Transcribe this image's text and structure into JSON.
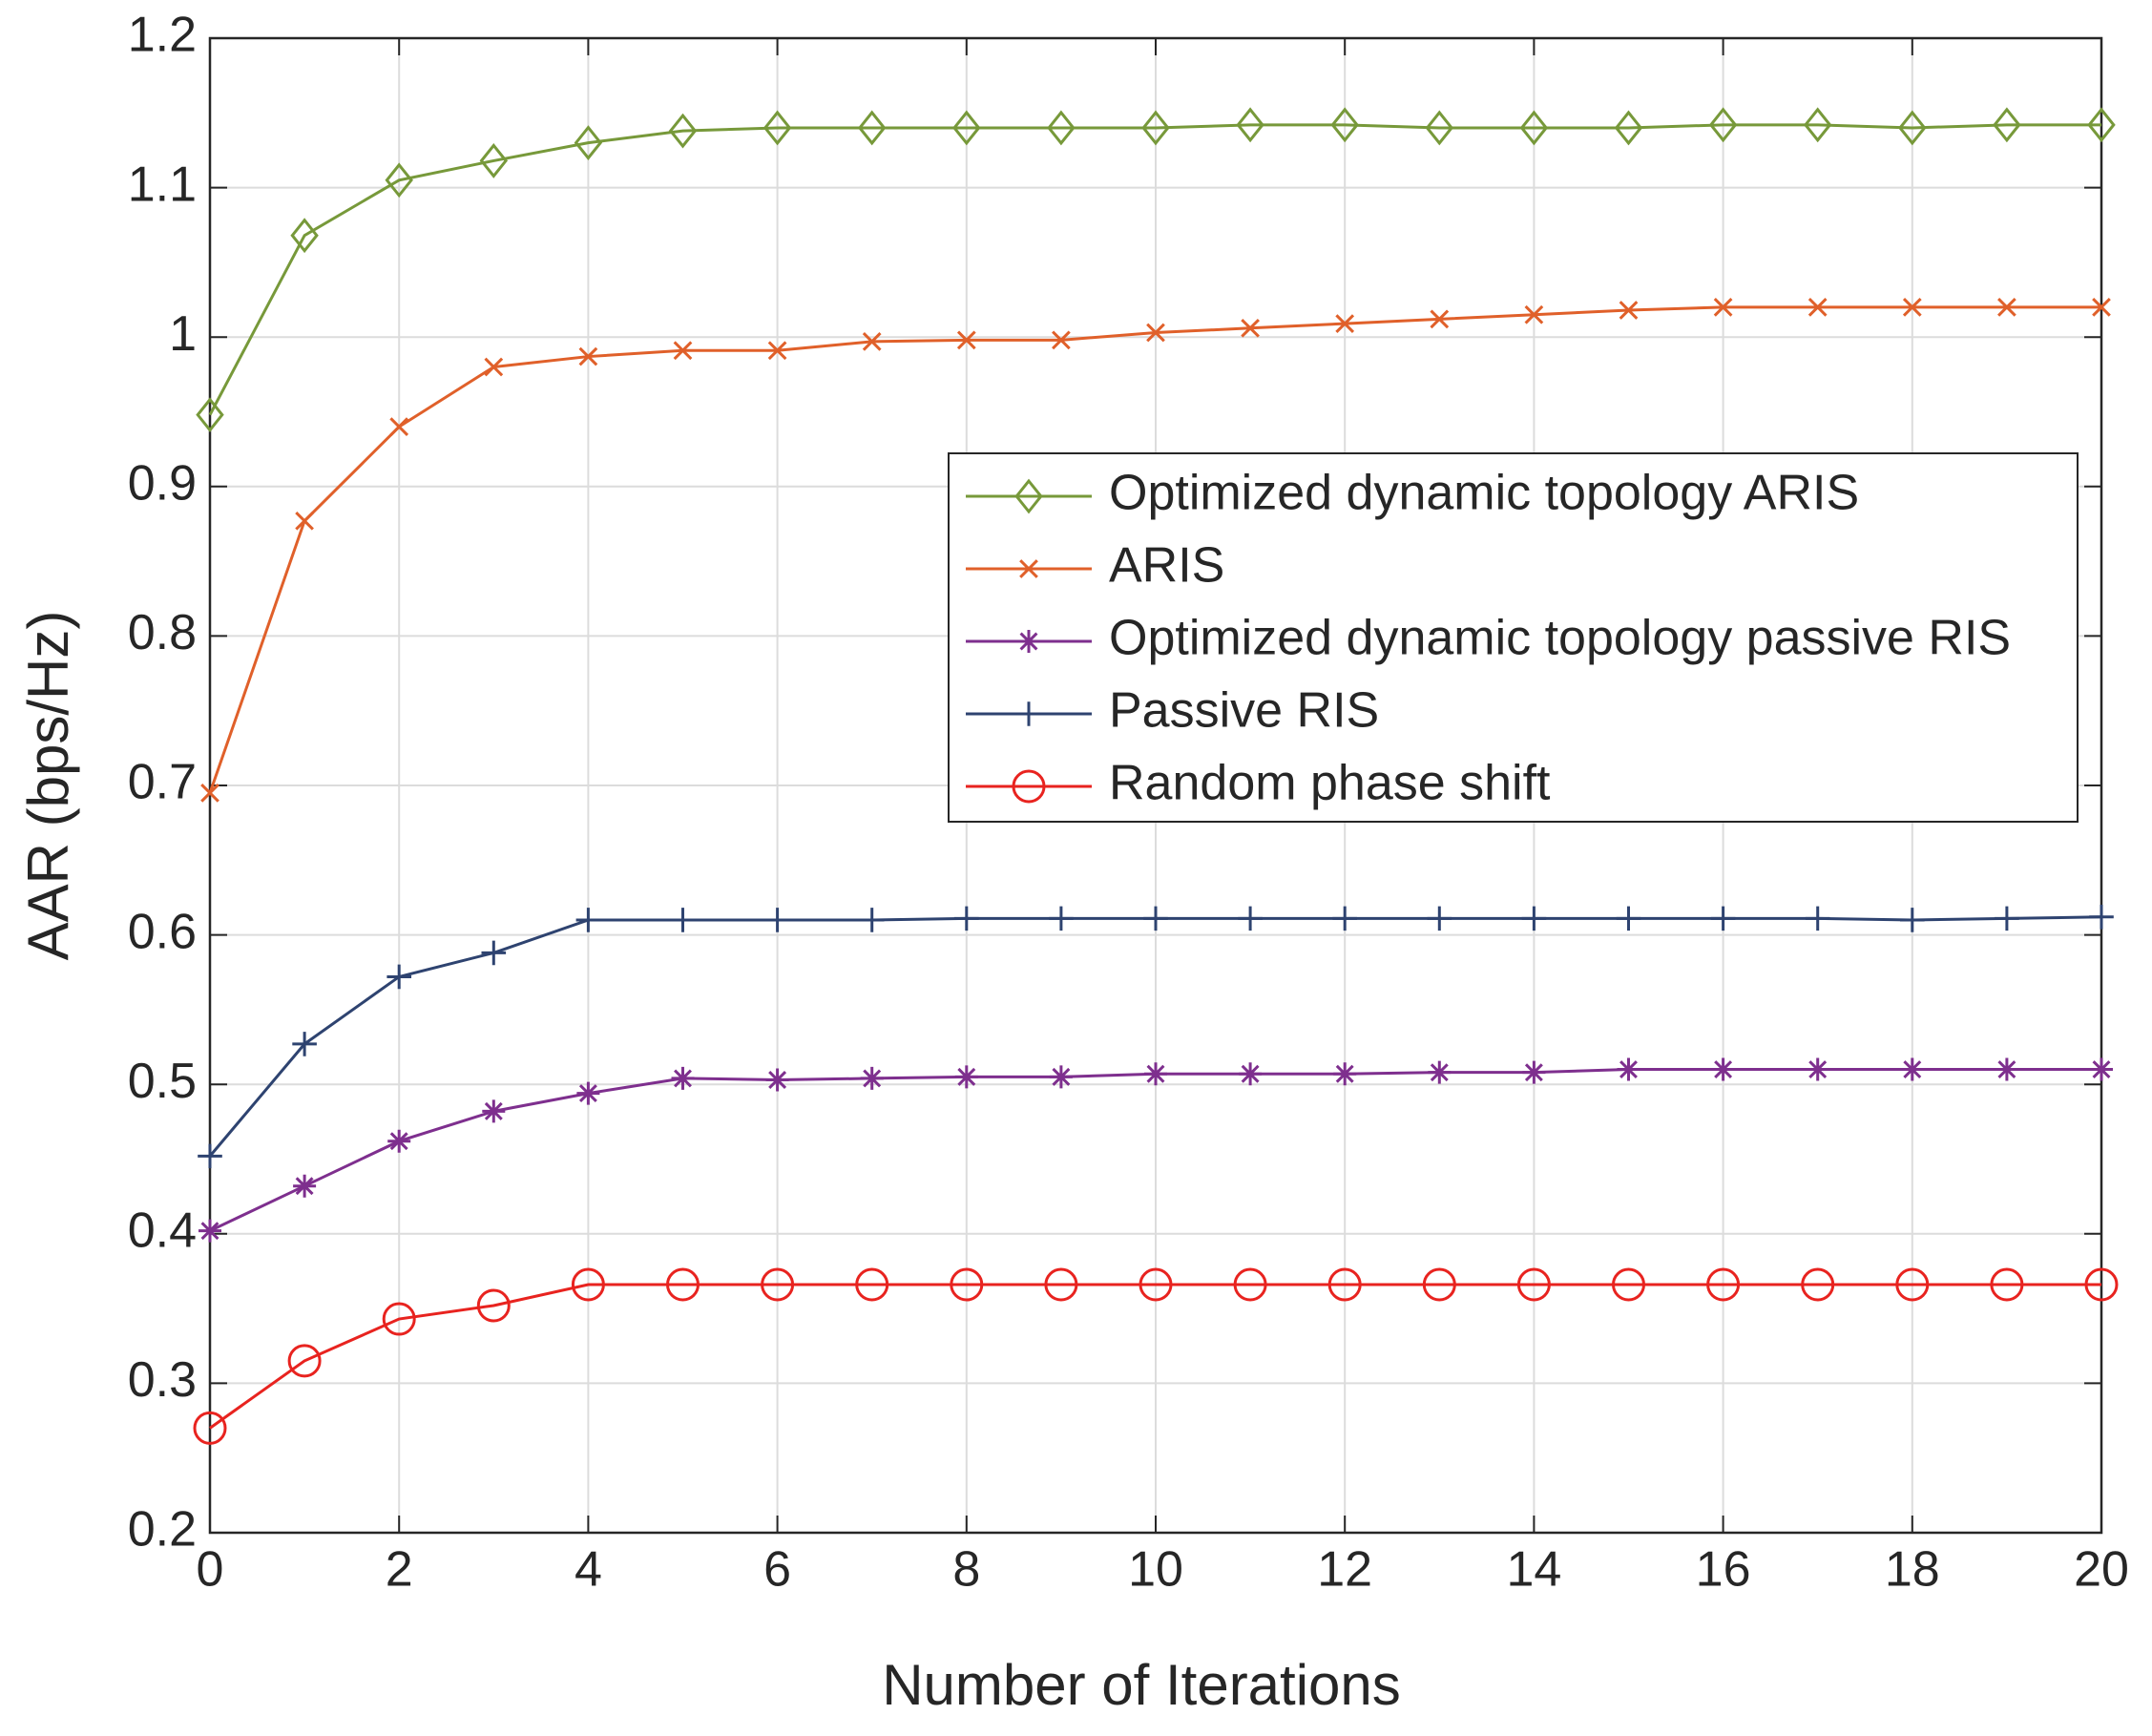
{
  "chart_data": {
    "type": "line",
    "xlabel": "Number of Iterations",
    "ylabel": "AAR (bps/Hz)",
    "x": [
      0,
      1,
      2,
      3,
      4,
      5,
      6,
      7,
      8,
      9,
      10,
      11,
      12,
      13,
      14,
      15,
      16,
      17,
      18,
      19,
      20
    ],
    "xlim": [
      0,
      20
    ],
    "xticks": [
      0,
      2,
      4,
      6,
      8,
      10,
      12,
      14,
      16,
      18,
      20
    ],
    "ylim": [
      0.2,
      1.2
    ],
    "yticks": [
      0.2,
      0.3,
      0.4,
      0.5,
      0.6,
      0.7,
      0.8,
      0.9,
      1,
      1.1,
      1.2
    ],
    "grid": true,
    "legend": "upper right",
    "series": [
      {
        "name": "Optimized dynamic topology ARIS",
        "color": "#77993a",
        "marker": "diamond",
        "values": [
          0.948,
          1.068,
          1.105,
          1.118,
          1.13,
          1.138,
          1.14,
          1.14,
          1.14,
          1.14,
          1.14,
          1.142,
          1.142,
          1.14,
          1.14,
          1.14,
          1.142,
          1.142,
          1.14,
          1.142,
          1.142
        ]
      },
      {
        "name": "ARIS",
        "color": "#e0602a",
        "marker": "x",
        "values": [
          0.695,
          0.877,
          0.94,
          0.98,
          0.987,
          0.991,
          0.991,
          0.997,
          0.998,
          0.998,
          1.003,
          1.006,
          1.009,
          1.012,
          1.015,
          1.018,
          1.02,
          1.02,
          1.02,
          1.02,
          1.02
        ]
      },
      {
        "name": "Optimized dynamic topology passive RIS",
        "color": "#7e2f8e",
        "marker": "star",
        "values": [
          0.402,
          0.432,
          0.462,
          0.482,
          0.494,
          0.504,
          0.503,
          0.504,
          0.505,
          0.505,
          0.507,
          0.507,
          0.507,
          0.508,
          0.508,
          0.51,
          0.51,
          0.51,
          0.51,
          0.51,
          0.51
        ]
      },
      {
        "name": "Passive RIS",
        "color": "#2e4370",
        "marker": "plus",
        "values": [
          0.452,
          0.527,
          0.572,
          0.588,
          0.61,
          0.61,
          0.61,
          0.61,
          0.611,
          0.611,
          0.611,
          0.611,
          0.611,
          0.611,
          0.611,
          0.611,
          0.611,
          0.611,
          0.61,
          0.611,
          0.612
        ]
      },
      {
        "name": "Random phase shift",
        "color": "#e8231f",
        "marker": "circle",
        "values": [
          0.27,
          0.315,
          0.343,
          0.352,
          0.366,
          0.366,
          0.366,
          0.366,
          0.366,
          0.366,
          0.366,
          0.366,
          0.366,
          0.366,
          0.366,
          0.366,
          0.366,
          0.366,
          0.366,
          0.366,
          0.366
        ]
      }
    ]
  }
}
